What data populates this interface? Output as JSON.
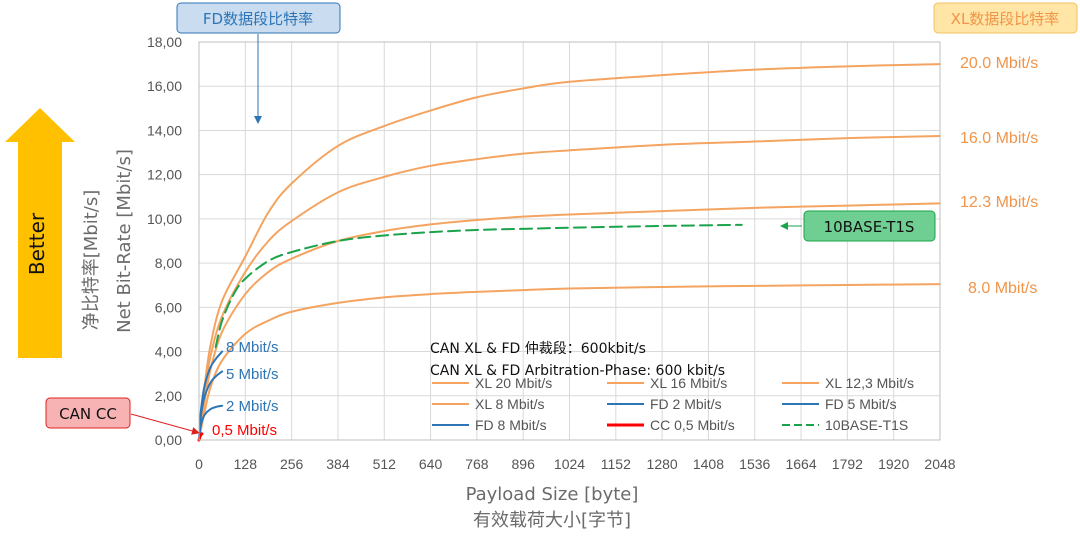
{
  "chart_data": {
    "type": "line",
    "xlabel": "Payload Size [byte]",
    "xlabel_cn": "有效载荷大小[字节]",
    "ylabel": "Net Bit-Rate [Mbit/s]",
    "ylabel_cn": "净比特率[Mbit/s]",
    "xlim": [
      0,
      2048
    ],
    "ylim": [
      0,
      18
    ],
    "x_ticks": [
      0,
      128,
      256,
      384,
      512,
      640,
      768,
      896,
      1024,
      1152,
      1280,
      1408,
      1536,
      1664,
      1792,
      1920,
      2048
    ],
    "x_tick_labels": [
      "0",
      "128",
      "256",
      "384",
      "512",
      "640",
      "768",
      "896",
      "1024",
      "1152",
      "1280",
      "1408",
      "1536",
      "1664",
      "1792",
      "1920",
      "2048"
    ],
    "y_ticks": [
      0,
      2,
      4,
      6,
      8,
      10,
      12,
      14,
      16,
      18
    ],
    "y_tick_labels": [
      "0,00",
      "2,00",
      "4,00",
      "6,00",
      "8,00",
      "10,00",
      "12,00",
      "14,00",
      "16,00",
      "18,00"
    ],
    "grid": true,
    "legend_position": "bottom-center",
    "annotation": "CAN XL & FD 仲裁段：600kbit/s",
    "annotation2": "CAN XL & FD Arbitration-Phase: 600 kbit/s",
    "series": [
      {
        "name": "XL 20 Mbit/s",
        "color": "#f4a460",
        "dash": "solid",
        "x": [
          0,
          16,
          32,
          64,
          128,
          192,
          256,
          384,
          512,
          640,
          768,
          896,
          1024,
          1280,
          1536,
          1792,
          2048
        ],
        "y": [
          0.05,
          2.5,
          4.3,
          6.3,
          8.3,
          10.3,
          11.6,
          13.3,
          14.2,
          14.9,
          15.5,
          15.9,
          16.2,
          16.5,
          16.75,
          16.9,
          17.0
        ]
      },
      {
        "name": "XL 16 Mbit/s",
        "color": "#f4a460",
        "dash": "solid",
        "x": [
          0,
          16,
          32,
          64,
          128,
          192,
          256,
          384,
          512,
          640,
          768,
          896,
          1024,
          1280,
          1536,
          1792,
          2048
        ],
        "y": [
          0.05,
          2.2,
          3.8,
          5.6,
          7.6,
          9.0,
          9.9,
          11.2,
          11.9,
          12.4,
          12.7,
          12.95,
          13.1,
          13.35,
          13.5,
          13.65,
          13.75
        ]
      },
      {
        "name": "XL 12,3 Mbit/s",
        "color": "#f4a460",
        "dash": "solid",
        "x": [
          0,
          16,
          32,
          64,
          128,
          192,
          256,
          384,
          512,
          640,
          768,
          896,
          1024,
          1280,
          1536,
          1792,
          2048
        ],
        "y": [
          0.05,
          1.8,
          3.2,
          4.9,
          6.6,
          7.6,
          8.2,
          9.0,
          9.45,
          9.75,
          9.95,
          10.1,
          10.2,
          10.35,
          10.5,
          10.6,
          10.7
        ]
      },
      {
        "name": "XL 8 Mbit/s",
        "color": "#f4a460",
        "dash": "solid",
        "x": [
          0,
          16,
          32,
          64,
          128,
          192,
          256,
          384,
          512,
          640,
          768,
          896,
          1024,
          1280,
          1536,
          1792,
          2048
        ],
        "y": [
          0.05,
          1.3,
          2.4,
          3.6,
          4.8,
          5.4,
          5.8,
          6.2,
          6.45,
          6.6,
          6.7,
          6.78,
          6.85,
          6.92,
          6.97,
          7.01,
          7.05
        ]
      },
      {
        "name": "FD 2 Mbit/s",
        "color": "#2e75b6",
        "dash": "solid",
        "x": [
          0,
          4,
          8,
          16,
          32,
          48,
          64
        ],
        "y": [
          0.0,
          0.55,
          0.85,
          1.15,
          1.4,
          1.5,
          1.55
        ]
      },
      {
        "name": "FD 5 Mbit/s",
        "color": "#2e75b6",
        "dash": "solid",
        "x": [
          0,
          4,
          8,
          16,
          32,
          48,
          64
        ],
        "y": [
          0.0,
          0.9,
          1.4,
          2.0,
          2.6,
          2.9,
          3.1
        ]
      },
      {
        "name": "FD 8 Mbit/s",
        "color": "#2e75b6",
        "dash": "solid",
        "x": [
          0,
          4,
          8,
          16,
          32,
          48,
          64
        ],
        "y": [
          0.0,
          1.1,
          1.7,
          2.5,
          3.3,
          3.7,
          4.0
        ]
      },
      {
        "name": "CC 0,5 Mbit/s",
        "color": "#ff0000",
        "dash": "solid",
        "x": [
          0,
          2,
          4,
          6,
          8
        ],
        "y": [
          0.0,
          0.12,
          0.2,
          0.25,
          0.28
        ]
      },
      {
        "name": "10BASE-T1S",
        "color": "#1aa34a",
        "dash": "dashed",
        "x": [
          46,
          64,
          96,
          128,
          192,
          256,
          384,
          512,
          640,
          768,
          896,
          1024,
          1280,
          1500
        ],
        "y": [
          4.2,
          5.4,
          6.6,
          7.3,
          8.1,
          8.5,
          9.0,
          9.25,
          9.4,
          9.5,
          9.55,
          9.6,
          9.68,
          9.73
        ]
      }
    ]
  },
  "right_labels": [
    "20.0 Mbit/s",
    "16.0 Mbit/s",
    "12.3 Mbit/s",
    "8.0 Mbit/s"
  ],
  "fd_labels": [
    "8 Mbit/s",
    "5 Mbit/s",
    "2 Mbit/s"
  ],
  "cc_label": "0,5 Mbit/s",
  "callouts": {
    "fd_rate": "FD数据段比特率",
    "xl_rate": "XL数据段比特率",
    "t1s": "10BASE-T1S",
    "can_cc": "CAN CC"
  },
  "better": "Better",
  "colors": {
    "xl": "#f4a460",
    "fd": "#2e75b6",
    "cc": "#ff0000",
    "t1s": "#1aa34a",
    "grid": "#d9d9d9",
    "arrow": "#ffc000"
  }
}
